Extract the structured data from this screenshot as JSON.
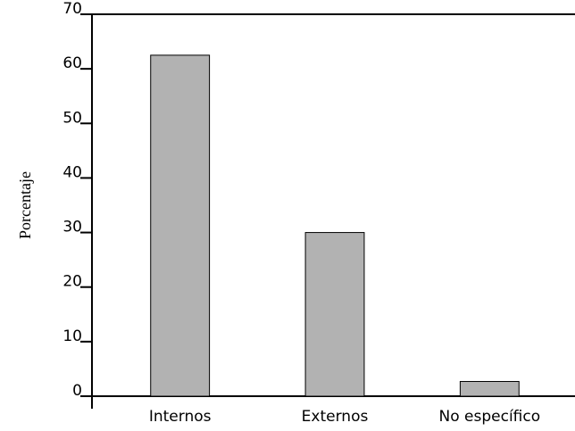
{
  "chart_data": {
    "type": "bar",
    "y_label": "Porcentaje",
    "categories": [
      "Internos",
      "Externos",
      "No específico"
    ],
    "values": [
      62.5,
      30,
      2.7
    ],
    "color": "#b2b2b2",
    "ylim": [
      0,
      70
    ],
    "yticks": [
      0,
      10,
      20,
      30,
      40,
      50,
      60,
      70
    ],
    "grid": false
  }
}
